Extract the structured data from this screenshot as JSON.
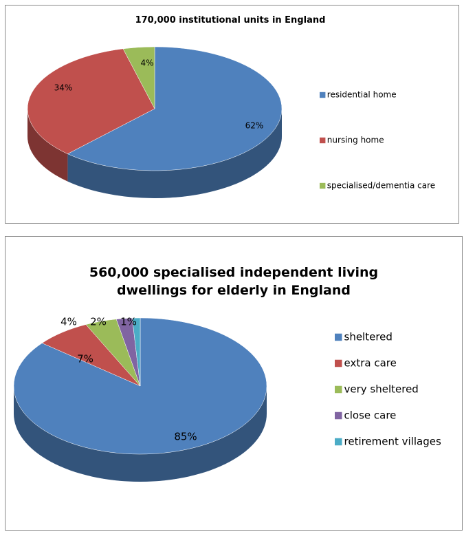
{
  "chart_data": [
    {
      "type": "pie",
      "title": "170,000 institutional units in England",
      "categories": [
        "residential home",
        "nursing home",
        "specialised/dementia care"
      ],
      "values": [
        62,
        34,
        4
      ],
      "value_labels": [
        "62%",
        "34%",
        "4%"
      ],
      "colors": [
        "#4f81bd",
        "#c0504d",
        "#9bbb59"
      ],
      "legend": "right"
    },
    {
      "type": "pie",
      "title": "560,000 specialised independent living dwellings for elderly in England",
      "categories": [
        "sheltered",
        "extra care",
        "very sheltered",
        "close care",
        "retirement villages"
      ],
      "values": [
        85,
        7,
        4,
        2,
        1
      ],
      "value_labels": [
        "85%",
        "7%",
        "4%",
        "2%",
        "1%"
      ],
      "colors": [
        "#4f81bd",
        "#c0504d",
        "#9bbb59",
        "#8064a2",
        "#4bacc6"
      ],
      "legend": "right"
    }
  ]
}
